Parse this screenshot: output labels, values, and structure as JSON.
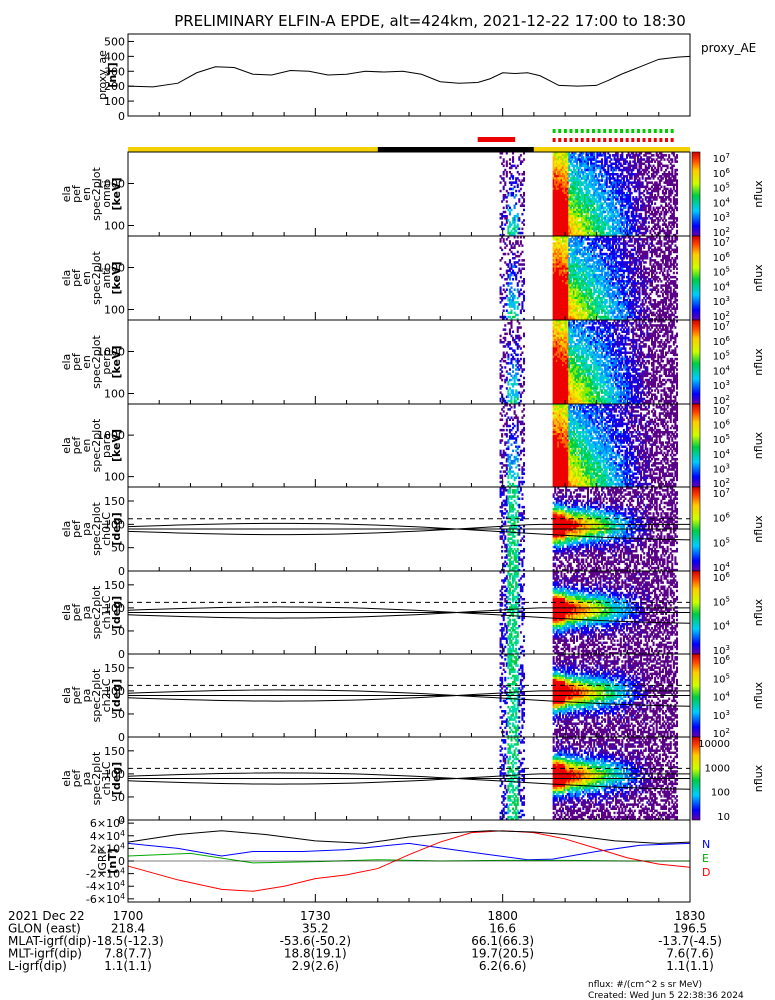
{
  "title": "PRELIMINARY ELFIN-A EPDE, alt=424km, 2021-12-22 17:00 to 18:30",
  "x_ticks": [
    "1700",
    "1730",
    "1800",
    "1830"
  ],
  "x_tick_minutes": [
    0,
    30,
    60,
    90
  ],
  "footer": {
    "units": "nflux: #/(cm^2 s sr MeV)",
    "created": "Created: Wed Jun  5 22:38:36 2024"
  },
  "ephemeris": {
    "rows": [
      {
        "label": "2021 Dec 22",
        "values": [
          "1700",
          "1730",
          "1800",
          "1830"
        ]
      },
      {
        "label": "GLON (east)",
        "values": [
          "218.4",
          "35.2",
          "16.6",
          "196.5"
        ]
      },
      {
        "label": "MLAT-igrf(dip)",
        "values": [
          "-18.5(-12.3)",
          "-53.6(-50.2)",
          "66.1(66.3)",
          "-13.7(-4.5)"
        ]
      },
      {
        "label": "MLT-igrf(dip)",
        "values": [
          "7.8(7.7)",
          "18.8(19.1)",
          "19.7(20.5)",
          "7.6(7.6)"
        ]
      },
      {
        "label": "L-igrf(dip)",
        "values": [
          "1.1(1.1)",
          "2.9(2.6)",
          "6.2(6.6)",
          "1.1(1.1)"
        ]
      }
    ]
  },
  "status_bar": {
    "segments": [
      {
        "start": 0,
        "end": 40,
        "color": "#f5d000"
      },
      {
        "start": 40,
        "end": 65,
        "color": "#000000"
      },
      {
        "start": 65,
        "end": 90,
        "color": "#f5d000"
      }
    ],
    "red_solid": [
      56,
      62
    ],
    "green_dots": [
      68,
      87
    ],
    "red_dots": [
      68,
      87
    ]
  },
  "chart_data": [
    {
      "type": "line",
      "panel": "proxy_ae",
      "ylabel": [
        "proxy_ae",
        "[nT]"
      ],
      "legend": "proxy_AE",
      "y_ticks": [
        "0",
        "100",
        "200",
        "300",
        "400",
        "500"
      ],
      "ylim": [
        0,
        550
      ],
      "x": [
        0,
        4,
        8,
        11,
        14,
        17,
        20,
        23,
        26,
        29,
        32,
        35,
        38,
        41,
        44,
        47,
        50,
        53,
        56,
        58,
        60,
        62,
        64,
        66,
        69,
        72,
        75,
        77,
        79,
        82,
        85,
        88,
        90
      ],
      "y": [
        200,
        195,
        220,
        290,
        330,
        325,
        280,
        275,
        305,
        300,
        275,
        280,
        300,
        295,
        300,
        280,
        230,
        220,
        225,
        250,
        290,
        285,
        290,
        270,
        205,
        200,
        205,
        240,
        280,
        330,
        380,
        395,
        400
      ]
    },
    {
      "type": "heatmap",
      "panel": "en omni",
      "ylabel": [
        "ela",
        "pef",
        "en",
        "spec2plot",
        "omni",
        "[keV]"
      ],
      "y_ticks": [
        "100",
        "1000"
      ],
      "y_scale": "log",
      "colorbar": {
        "label": "nflux",
        "ticks": [
          "10^2",
          "10^3",
          "10^4",
          "10^5",
          "10^6",
          "10^7"
        ]
      }
    },
    {
      "type": "heatmap",
      "panel": "en anti",
      "ylabel": [
        "ela",
        "pef",
        "en",
        "spec2plot",
        "anti",
        "[keV]"
      ],
      "y_ticks": [
        "100",
        "1000"
      ],
      "y_scale": "log",
      "colorbar": {
        "label": "nflux",
        "ticks": [
          "10^2",
          "10^3",
          "10^4",
          "10^5",
          "10^6",
          "10^7"
        ]
      }
    },
    {
      "type": "heatmap",
      "panel": "en perp",
      "ylabel": [
        "ela",
        "pef",
        "en",
        "spec2plot",
        "perp",
        "[keV]"
      ],
      "y_ticks": [
        "100",
        "1000"
      ],
      "y_scale": "log",
      "colorbar": {
        "label": "nflux",
        "ticks": [
          "10^2",
          "10^3",
          "10^4",
          "10^5",
          "10^6",
          "10^7"
        ]
      }
    },
    {
      "type": "heatmap",
      "panel": "en para",
      "ylabel": [
        "ela",
        "pef",
        "en",
        "spec2plot",
        "para",
        "[keV]"
      ],
      "y_ticks": [
        "100",
        "1000"
      ],
      "y_scale": "log",
      "colorbar": {
        "label": "nflux",
        "ticks": [
          "10^2",
          "10^3",
          "10^4",
          "10^5",
          "10^6",
          "10^7"
        ]
      }
    },
    {
      "type": "heatmap",
      "panel": "pa ch0LC",
      "ylabel": [
        "ela",
        "pef",
        "pa",
        "spec2plot",
        "ch0LC",
        "[deg]"
      ],
      "y_ticks": [
        "0",
        "50",
        "100",
        "150"
      ],
      "ylim": [
        0,
        180
      ],
      "colorbar": {
        "label": "nflux",
        "ticks": [
          "10^4",
          "10^5",
          "10^6",
          "10^7"
        ]
      }
    },
    {
      "type": "heatmap",
      "panel": "pa ch1LC",
      "ylabel": [
        "ela",
        "pef",
        "pa",
        "spec2plot",
        "ch1LC",
        "[deg]"
      ],
      "y_ticks": [
        "0",
        "50",
        "100",
        "150"
      ],
      "ylim": [
        0,
        180
      ],
      "colorbar": {
        "label": "nflux",
        "ticks": [
          "10^3",
          "10^4",
          "10^5",
          "10^6"
        ]
      }
    },
    {
      "type": "heatmap",
      "panel": "pa ch2LC",
      "ylabel": [
        "ela",
        "pef",
        "pa",
        "spec2plot",
        "ch2LC",
        "[deg]"
      ],
      "y_ticks": [
        "0",
        "50",
        "100",
        "150"
      ],
      "ylim": [
        0,
        180
      ],
      "colorbar": {
        "label": "nflux",
        "ticks": [
          "10^2",
          "10^3",
          "10^4",
          "10^5",
          "10^6"
        ]
      }
    },
    {
      "type": "heatmap",
      "panel": "pa ch3LC",
      "ylabel": [
        "ela",
        "pef",
        "pa",
        "spec2plot",
        "ch3LC",
        "[deg]"
      ],
      "y_ticks": [
        "0",
        "50",
        "100",
        "150"
      ],
      "ylim": [
        0,
        180
      ],
      "colorbar": {
        "label": "nflux",
        "ticks": [
          "10",
          "100",
          "1000",
          "10000"
        ]
      }
    },
    {
      "type": "line",
      "panel": "IGRF",
      "ylabel": [
        "IGRF",
        "[nT]"
      ],
      "y_ticks": [
        "-6×10^4",
        "-4×10^4",
        "-2×10^4",
        "0",
        "2×10^4",
        "4×10^4",
        "6×10^4"
      ],
      "ylim": [
        -65000,
        65000
      ],
      "series": [
        {
          "name": "N",
          "color": "#0000ff",
          "x": [
            0,
            8,
            15,
            20,
            28,
            35,
            45,
            52,
            58,
            64,
            68,
            75,
            82,
            90
          ],
          "y": [
            28000,
            20000,
            8000,
            15000,
            15000,
            18000,
            28000,
            18000,
            10000,
            2000,
            3000,
            15000,
            25000,
            28000
          ]
        },
        {
          "name": "E",
          "color": "#00aa00",
          "x": [
            0,
            10,
            20,
            30,
            40,
            50,
            60,
            70,
            80,
            90
          ],
          "y": [
            8000,
            12000,
            -3000,
            -1000,
            2000,
            0,
            1000,
            1000,
            0,
            0
          ]
        },
        {
          "name": "D",
          "color": "#ff0000",
          "x": [
            0,
            8,
            15,
            20,
            25,
            30,
            35,
            40,
            45,
            50,
            55,
            60,
            65,
            70,
            75,
            80,
            85,
            90
          ],
          "y": [
            -8000,
            -30000,
            -45000,
            -48000,
            -40000,
            -28000,
            -22000,
            -12000,
            10000,
            30000,
            45000,
            48000,
            45000,
            35000,
            20000,
            5000,
            -5000,
            -10000
          ]
        },
        {
          "name": "",
          "color": "#000000",
          "x": [
            0,
            8,
            15,
            22,
            30,
            38,
            45,
            52,
            58,
            65,
            70,
            78,
            85,
            90
          ],
          "y": [
            30000,
            42000,
            48000,
            42000,
            32000,
            28000,
            38000,
            45000,
            48000,
            46000,
            42000,
            32000,
            28000,
            30000
          ]
        }
      ]
    }
  ]
}
